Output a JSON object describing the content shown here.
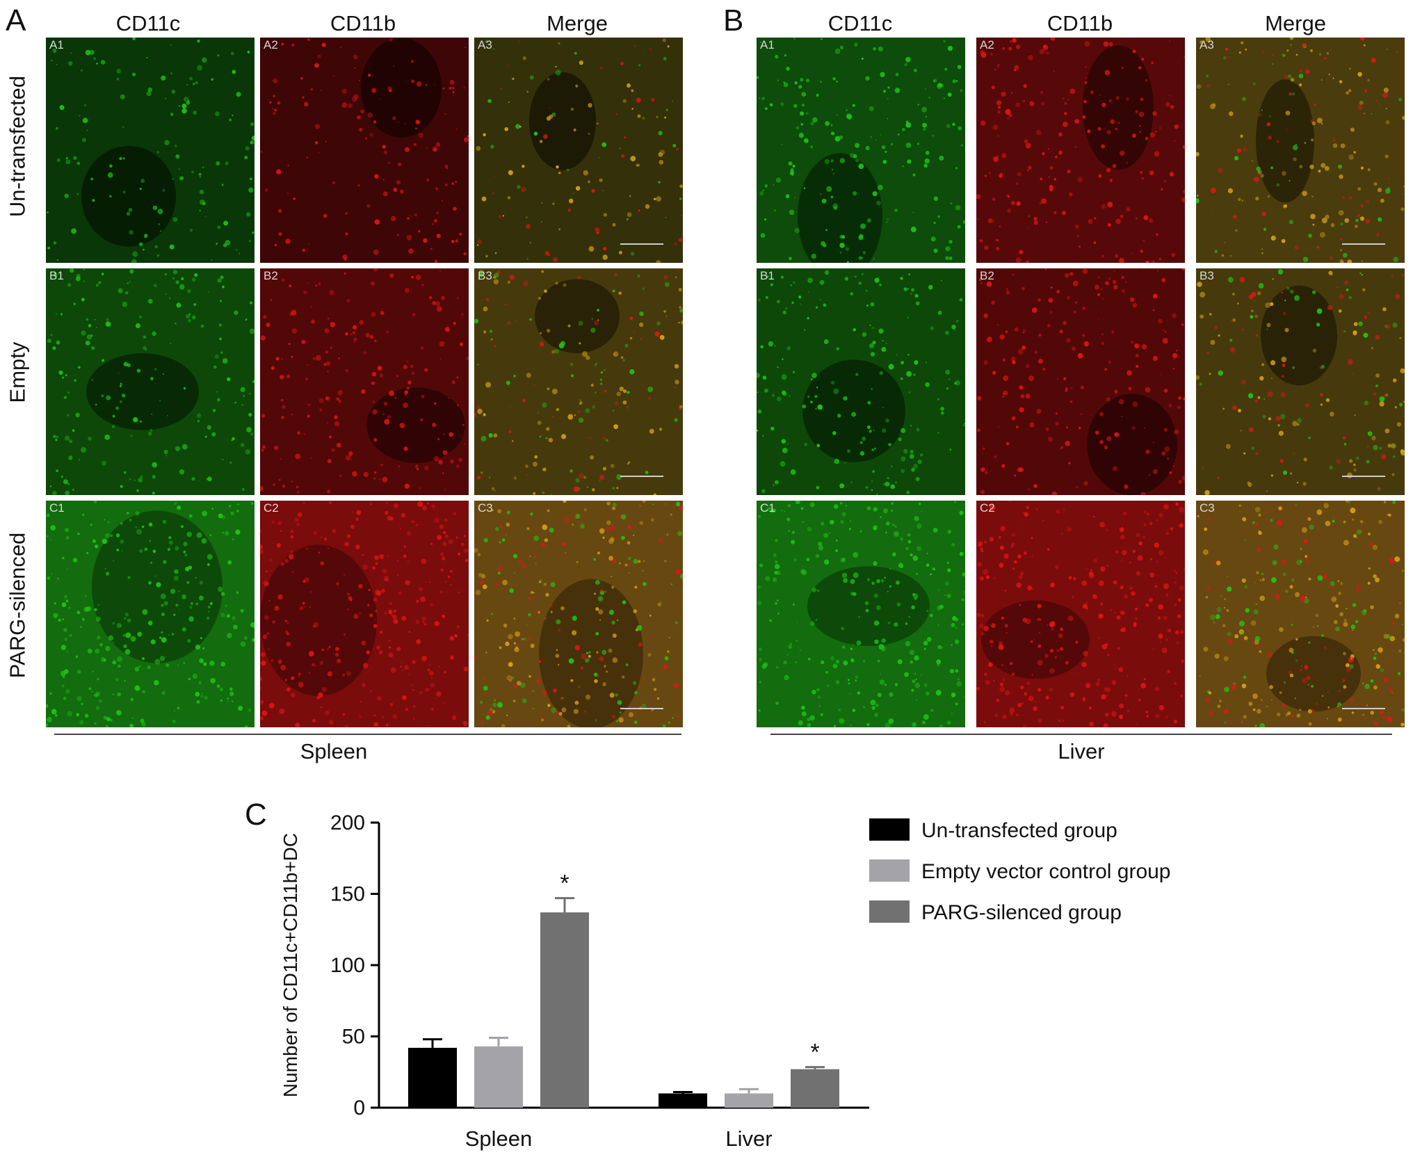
{
  "panel_a": {
    "letter": "A",
    "columns": [
      "CD11c",
      "CD11b",
      "Merge"
    ],
    "rows": [
      "Un-transfected",
      "Empty",
      "PARG-silenced"
    ],
    "cells": [
      [
        "A1",
        "A2",
        "A3"
      ],
      [
        "B1",
        "B2",
        "B3"
      ],
      [
        "C1",
        "C2",
        "C3"
      ]
    ],
    "tissue": "Spleen"
  },
  "panel_b": {
    "letter": "B",
    "columns": [
      "CD11c",
      "CD11b",
      "Merge"
    ],
    "cells": [
      [
        "A1",
        "A2",
        "A3"
      ],
      [
        "B1",
        "B2",
        "B3"
      ],
      [
        "C1",
        "C2",
        "C3"
      ]
    ],
    "tissue": "Liver"
  },
  "panel_c": {
    "letter": "C"
  },
  "channel_colors": {
    "green": "#22c419",
    "red": "#e01616",
    "merge": "#d8a21a"
  },
  "chart_data": {
    "type": "bar",
    "ylabel": "Number of CD11c+CD11b+DC",
    "ylim": [
      0,
      200
    ],
    "yticks": [
      0,
      50,
      100,
      150,
      200
    ],
    "categories": [
      "Spleen",
      "Liver"
    ],
    "series": [
      {
        "name": "Un-transfected group",
        "color": "#000000",
        "values": [
          42,
          10
        ],
        "errors": [
          6,
          1
        ]
      },
      {
        "name": "Empty vector control group",
        "color": "#a3a3a8",
        "values": [
          43,
          10
        ],
        "errors": [
          6,
          3
        ]
      },
      {
        "name": "PARG-silenced group",
        "color": "#717171",
        "values": [
          137,
          27
        ],
        "errors": [
          10,
          1.5
        ]
      }
    ],
    "significance": [
      "",
      "",
      "*"
    ],
    "grid": false,
    "legend": "right"
  }
}
